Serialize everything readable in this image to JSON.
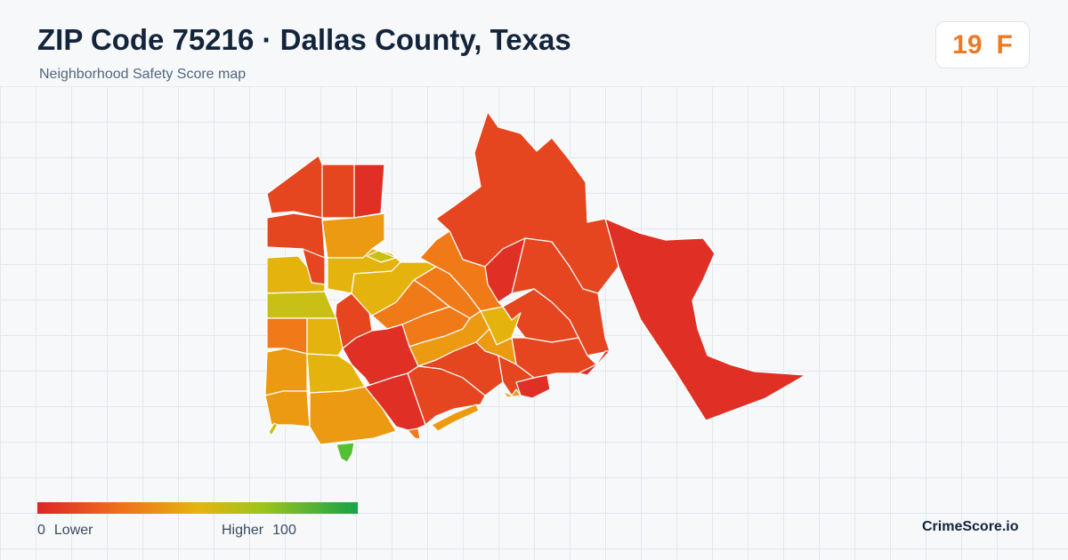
{
  "header": {
    "title": "ZIP Code 75216 · Dallas County, Texas",
    "subtitle": "Neighborhood Safety Score map"
  },
  "score": {
    "value": "19",
    "grade": "F",
    "color": "#ec7a24"
  },
  "legend": {
    "low_value": "0",
    "low_label": "Lower",
    "high_label": "Higher",
    "high_value": "100",
    "colors": [
      "#dc2626",
      "#ef6d1c",
      "#e6b410",
      "#9ec41a",
      "#16a34a"
    ]
  },
  "brand": "CrimeScore.io",
  "map": {
    "colors": {
      "red": "#e03026",
      "red_orange": "#e5461f",
      "orange": "#f07a18",
      "amber": "#ec9a12",
      "gold": "#e5b30d",
      "olive": "#c9c016",
      "green": "#54c132"
    },
    "boundary_color": "#ffffff"
  }
}
